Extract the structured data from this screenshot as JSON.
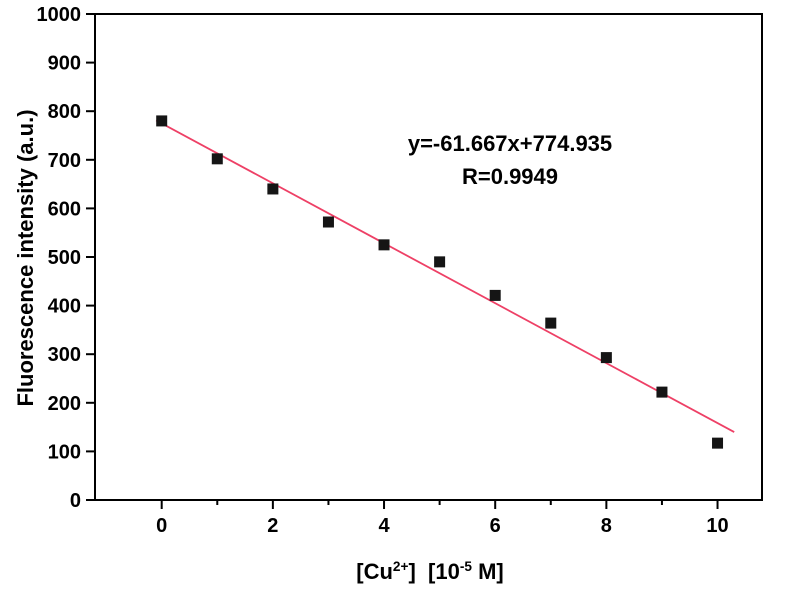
{
  "chart_data": {
    "type": "scatter",
    "title": "",
    "xlabel_parts": {
      "pre": "[Cu",
      "sup1": "2+",
      "mid": "]  [10",
      "sup2": "-5",
      "post": " M]"
    },
    "ylabel": "Fluorescence intensity (a.u.)",
    "x": [
      0,
      1,
      2,
      3,
      4,
      5,
      6,
      7,
      8,
      9,
      10
    ],
    "y": [
      780,
      702,
      640,
      572,
      525,
      490,
      421,
      364,
      293,
      222,
      117
    ],
    "fit_line": {
      "slope": -61.667,
      "intercept": 774.935,
      "x_start": -0.1,
      "x_end": 10.3
    },
    "annotation": {
      "equation": "y=-61.667x+774.935",
      "r_value": "R=0.9949"
    },
    "xlim": [
      -1.2,
      10.8
    ],
    "ylim": [
      0,
      1000
    ],
    "x_ticks_major": [
      0,
      2,
      4,
      6,
      8,
      10
    ],
    "x_ticks_minor": [
      1,
      3,
      5,
      7,
      9
    ],
    "y_ticks_major": [
      0,
      100,
      200,
      300,
      400,
      500,
      600,
      700,
      800,
      900,
      1000
    ],
    "grid": "off",
    "legend": "none",
    "colors": {
      "marker": "#151515",
      "line": "#ee4066",
      "axis": "#000000",
      "background": "#ffffff"
    }
  }
}
